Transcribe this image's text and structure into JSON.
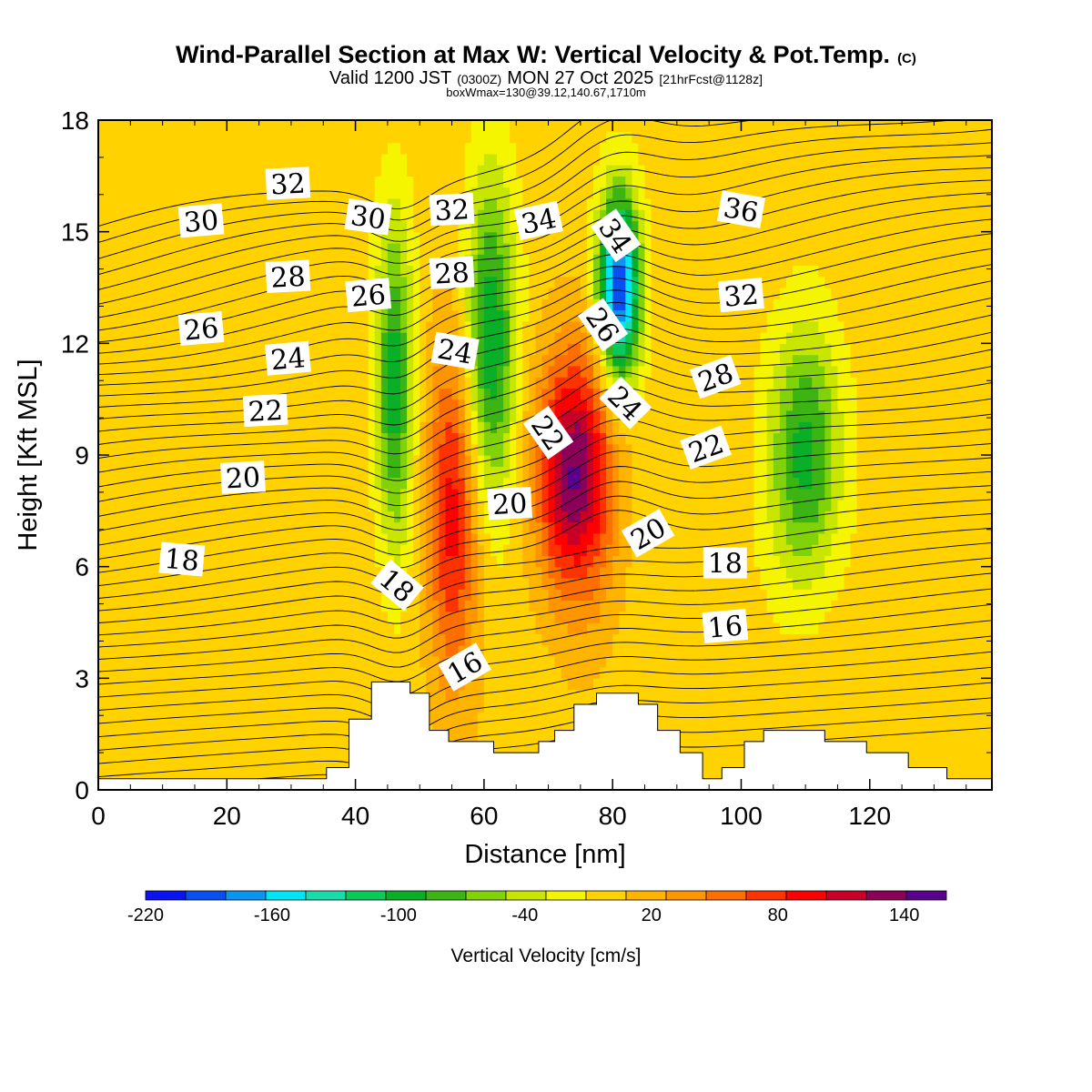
{
  "header": {
    "title_main": "Wind-Parallel Section at Max W: Vertical Velocity & Pot.Temp.",
    "title_mark": "(C)",
    "valid_a": "Valid 1200 JST",
    "valid_b": "(0300Z)",
    "valid_c": "MON 27 Oct 2025",
    "valid_d": "[21hrFcst@1128z]",
    "box_info": "boxWmax=130@39.12,140.67,1710m"
  },
  "chart_data": {
    "type": "heatmap",
    "title": "Wind-Parallel Section at Max W: Vertical Velocity & Pot.Temp.",
    "xlabel": "Distance [nm]",
    "ylabel": "Height [Kft MSL]",
    "xlim": [
      0,
      139
    ],
    "ylim": [
      0,
      18
    ],
    "xticks": [
      "0",
      "20",
      "40",
      "60",
      "80",
      "100",
      "120"
    ],
    "yticks": [
      "0",
      "3",
      "6",
      "9",
      "12",
      "15",
      "18"
    ],
    "colorbar": {
      "label": "Vertical Velocity [cm/s]",
      "levels": [
        -220,
        -200,
        -180,
        -160,
        -140,
        -120,
        -100,
        -80,
        -60,
        -40,
        -20,
        0,
        20,
        40,
        60,
        80,
        100,
        120,
        140,
        160
      ],
      "tick_labels": [
        "-220",
        "-160",
        "-100",
        "-40",
        "20",
        "80",
        "140"
      ],
      "colors": [
        "#0a14f0",
        "#0a50f0",
        "#0a96f0",
        "#00e6f5",
        "#19dcaa",
        "#0ac85a",
        "#0aaf28",
        "#3cb414",
        "#82d20a",
        "#c8e600",
        "#f5f500",
        "#ffd200",
        "#ffb400",
        "#ff9600",
        "#ff6e00",
        "#ff3200",
        "#ff0000",
        "#c80028",
        "#8c005a",
        "#5a008c"
      ]
    },
    "vertical_velocity_peaks": [
      {
        "x": 74,
        "z": 8.5,
        "w": 160
      },
      {
        "x": 55,
        "z": 7.5,
        "w": 110
      },
      {
        "x": 81,
        "z": 13.5,
        "w": -200
      },
      {
        "x": 46,
        "z": 11,
        "w": -90
      },
      {
        "x": 61,
        "z": 12,
        "w": -100
      },
      {
        "x": 110,
        "z": 9,
        "w": -90
      }
    ],
    "theta_contour_labels": [
      {
        "text": "32",
        "x": 29.5,
        "z": 16.3,
        "angle": -3
      },
      {
        "text": "30",
        "x": 16,
        "z": 15.3,
        "angle": -5
      },
      {
        "text": "30",
        "x": 42,
        "z": 15.4,
        "angle": 8
      },
      {
        "text": "32",
        "x": 55,
        "z": 15.6,
        "angle": -3
      },
      {
        "text": "34",
        "x": 68.5,
        "z": 15.3,
        "angle": -12
      },
      {
        "text": "34",
        "x": 80.5,
        "z": 14.9,
        "angle": 55
      },
      {
        "text": "36",
        "x": 100,
        "z": 15.6,
        "angle": 10
      },
      {
        "text": "28",
        "x": 29.5,
        "z": 13.8,
        "angle": -3
      },
      {
        "text": "28",
        "x": 55,
        "z": 13.9,
        "angle": -3
      },
      {
        "text": "26",
        "x": 42,
        "z": 13.3,
        "angle": -5
      },
      {
        "text": "26",
        "x": 16,
        "z": 12.4,
        "angle": -5
      },
      {
        "text": "26",
        "x": 78.5,
        "z": 12.5,
        "angle": 55
      },
      {
        "text": "32",
        "x": 100,
        "z": 13.3,
        "angle": -5
      },
      {
        "text": "24",
        "x": 29.5,
        "z": 11.6,
        "angle": -5
      },
      {
        "text": "24",
        "x": 55.5,
        "z": 11.8,
        "angle": 10
      },
      {
        "text": "28",
        "x": 96,
        "z": 11.1,
        "angle": -20
      },
      {
        "text": "22",
        "x": 26,
        "z": 10.2,
        "angle": -3
      },
      {
        "text": "22",
        "x": 70,
        "z": 9.6,
        "angle": 55
      },
      {
        "text": "24",
        "x": 82,
        "z": 10.4,
        "angle": 45
      },
      {
        "text": "22",
        "x": 94.5,
        "z": 9.2,
        "angle": -20
      },
      {
        "text": "20",
        "x": 22.5,
        "z": 8.4,
        "angle": -3
      },
      {
        "text": "20",
        "x": 64,
        "z": 7.7,
        "angle": -3
      },
      {
        "text": "20",
        "x": 85.5,
        "z": 6.9,
        "angle": -30
      },
      {
        "text": "18",
        "x": 13,
        "z": 6.2,
        "angle": 5
      },
      {
        "text": "18",
        "x": 46.5,
        "z": 5.5,
        "angle": 40
      },
      {
        "text": "18",
        "x": 97.5,
        "z": 6.1,
        "angle": 0
      },
      {
        "text": "16",
        "x": 57,
        "z": 3.3,
        "angle": -30
      },
      {
        "text": "16",
        "x": 97.5,
        "z": 4.4,
        "angle": -5
      }
    ],
    "terrain_kft": [
      {
        "x": 35.5,
        "h": 0.6
      },
      {
        "x": 39,
        "h": 1.9
      },
      {
        "x": 42.5,
        "h": 2.9
      },
      {
        "x": 48.5,
        "h": 2.6
      },
      {
        "x": 51.5,
        "h": 1.6
      },
      {
        "x": 54.5,
        "h": 1.3
      },
      {
        "x": 57.5,
        "h": 1.3
      },
      {
        "x": 61.5,
        "h": 1.0
      },
      {
        "x": 68.5,
        "h": 1.3
      },
      {
        "x": 71,
        "h": 1.6
      },
      {
        "x": 74,
        "h": 2.3
      },
      {
        "x": 77.5,
        "h": 2.6
      },
      {
        "x": 84,
        "h": 2.3
      },
      {
        "x": 87,
        "h": 1.6
      },
      {
        "x": 90.5,
        "h": 1.0
      },
      {
        "x": 94,
        "h": 0.3
      },
      {
        "x": 97,
        "h": 0.6
      },
      {
        "x": 100.5,
        "h": 1.3
      },
      {
        "x": 103.5,
        "h": 1.6
      },
      {
        "x": 113,
        "h": 1.3
      },
      {
        "x": 119.5,
        "h": 1.0
      },
      {
        "x": 126,
        "h": 0.6
      },
      {
        "x": 132,
        "h": 0.3
      }
    ]
  }
}
